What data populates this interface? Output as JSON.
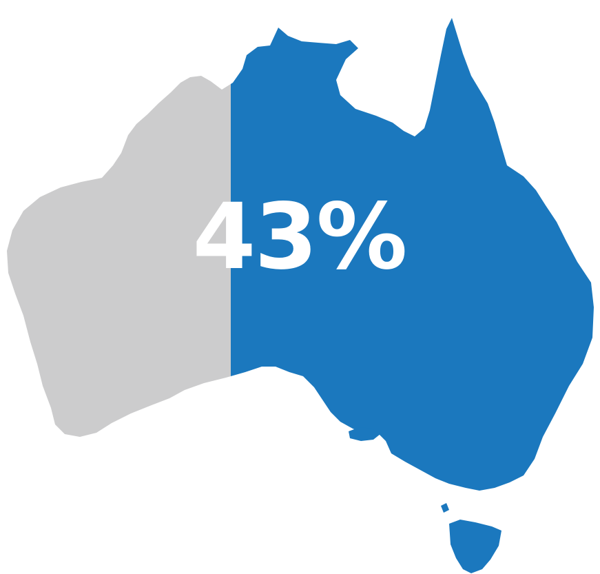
{
  "infographic": {
    "percent_text": "43%",
    "share": 0.43,
    "colors": {
      "highlight": "#1b78be",
      "remainder": "#cccccd",
      "label": "#ffffff",
      "background": "#ffffff"
    },
    "map_shape": "australia"
  }
}
